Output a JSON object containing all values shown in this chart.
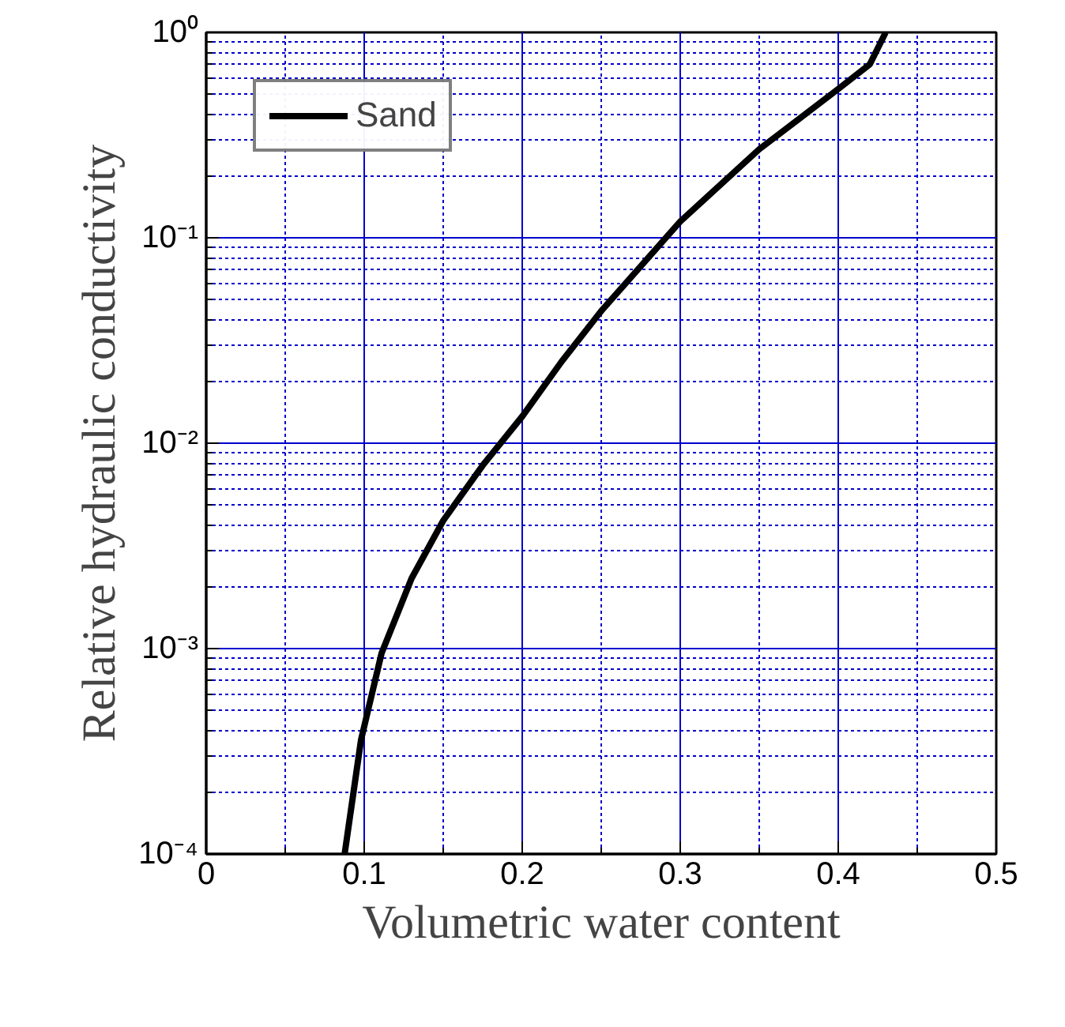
{
  "chart_data": {
    "type": "line",
    "xlabel": "Volumetric water content",
    "ylabel": "Relative hydraulic conductivity",
    "x": [
      0.0876,
      0.098,
      0.111,
      0.13,
      0.15,
      0.175,
      0.2,
      0.225,
      0.25,
      0.3,
      0.35,
      0.4,
      0.42,
      0.43
    ],
    "series": [
      {
        "name": "Sand",
        "color": "#000000",
        "values": [
          0.0001,
          0.00036,
          0.00095,
          0.0022,
          0.0042,
          0.0078,
          0.0135,
          0.025,
          0.044,
          0.12,
          0.27,
          0.53,
          0.7,
          1.0
        ]
      }
    ],
    "log": "y",
    "xlim": [
      0,
      0.5
    ],
    "ylim": [
      0.0001,
      1
    ],
    "xticks": [
      0,
      {
        "value": 0.05,
        "label": null
      },
      0.1,
      {
        "value": 0.15,
        "label": null
      },
      0.2,
      {
        "value": 0.25,
        "label": null
      },
      0.3,
      {
        "value": 0.35,
        "label": null
      },
      0.4,
      {
        "value": 0.45,
        "label": null
      },
      0.5
    ],
    "yticks": [
      {
        "value": 0.0001,
        "label": "10⁻⁴"
      },
      {
        "value": 0.0002,
        "label": null
      },
      {
        "value": 0.0003,
        "label": null
      },
      {
        "value": 0.0004,
        "label": null
      },
      {
        "value": 0.0005,
        "label": null
      },
      {
        "value": 0.0006,
        "label": null
      },
      {
        "value": 0.0007,
        "label": null
      },
      {
        "value": 0.0008,
        "label": null
      },
      {
        "value": 0.0009,
        "label": null
      },
      {
        "value": 0.001,
        "label": "10⁻³"
      },
      {
        "value": 0.002,
        "label": null
      },
      {
        "value": 0.003,
        "label": null
      },
      {
        "value": 0.004,
        "label": null
      },
      {
        "value": 0.005,
        "label": null
      },
      {
        "value": 0.006,
        "label": null
      },
      {
        "value": 0.007,
        "label": null
      },
      {
        "value": 0.008,
        "label": null
      },
      {
        "value": 0.009,
        "label": null
      },
      {
        "value": 0.01,
        "label": "10⁻²"
      },
      {
        "value": 0.02,
        "label": null
      },
      {
        "value": 0.03,
        "label": null
      },
      {
        "value": 0.04,
        "label": null
      },
      {
        "value": 0.05,
        "label": null
      },
      {
        "value": 0.06,
        "label": null
      },
      {
        "value": 0.07,
        "label": null
      },
      {
        "value": 0.08,
        "label": null
      },
      {
        "value": 0.09,
        "label": null
      },
      {
        "value": 0.1,
        "label": "10⁻¹"
      },
      {
        "value": 0.2,
        "label": null
      },
      {
        "value": 0.3,
        "label": null
      },
      {
        "value": 0.4,
        "label": null
      },
      {
        "value": 0.5,
        "label": null
      },
      {
        "value": 0.6,
        "label": null
      },
      {
        "value": 0.7,
        "label": null
      },
      {
        "value": 0.8,
        "label": null
      },
      {
        "value": 0.9,
        "label": null
      },
      {
        "value": 1,
        "label": "10⁰"
      }
    ],
    "grid": true,
    "legend": "top left",
    "marker": "none",
    "line_style": "solid"
  }
}
